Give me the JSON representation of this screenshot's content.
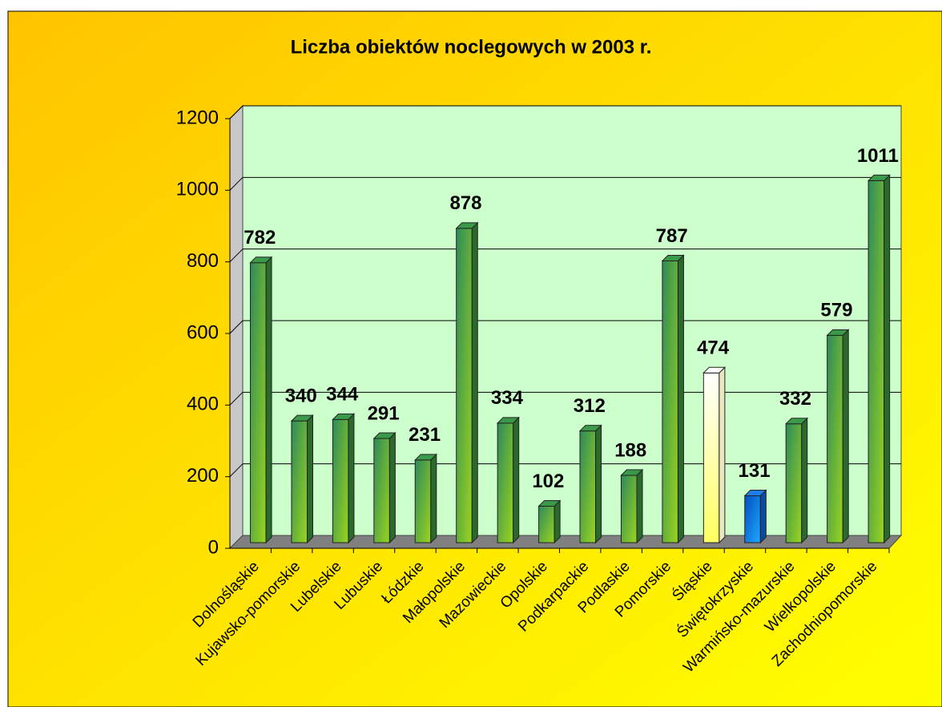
{
  "chart_data": {
    "type": "bar3d",
    "title": "Liczba obiektów noclegowych w 2003 r.",
    "categories": [
      "Dolnośląskie",
      "Kujawsko-pomorskie",
      "Lubelskie",
      "Lubuskie",
      "Łódzkie",
      "Małopolskie",
      "Mazowieckie",
      "Opolskie",
      "Podkarpackie",
      "Podlaskie",
      "Pomorskie",
      "Śląskie",
      "Świętokrzyskie",
      "Warmińsko-mazurskie",
      "Wielkopolskie",
      "Zachodniopomorskie"
    ],
    "values": [
      782,
      340,
      344,
      291,
      231,
      878,
      334,
      102,
      312,
      188,
      787,
      474,
      131,
      332,
      579,
      1011
    ],
    "colors": [
      "#3a9a4a",
      "#3a9a4a",
      "#3a9a4a",
      "#3a9a4a",
      "#3a9a4a",
      "#3a9a4a",
      "#3a9a4a",
      "#3a9a4a",
      "#3a9a4a",
      "#3a9a4a",
      "#3a9a4a",
      "#ffffff",
      "#1f7fe8",
      "#3a9a4a",
      "#3a9a4a",
      "#3a9a4a"
    ],
    "ylim": [
      0,
      1200
    ],
    "yticks": [
      0,
      200,
      400,
      600,
      800,
      1000,
      1200
    ],
    "grid": true
  }
}
